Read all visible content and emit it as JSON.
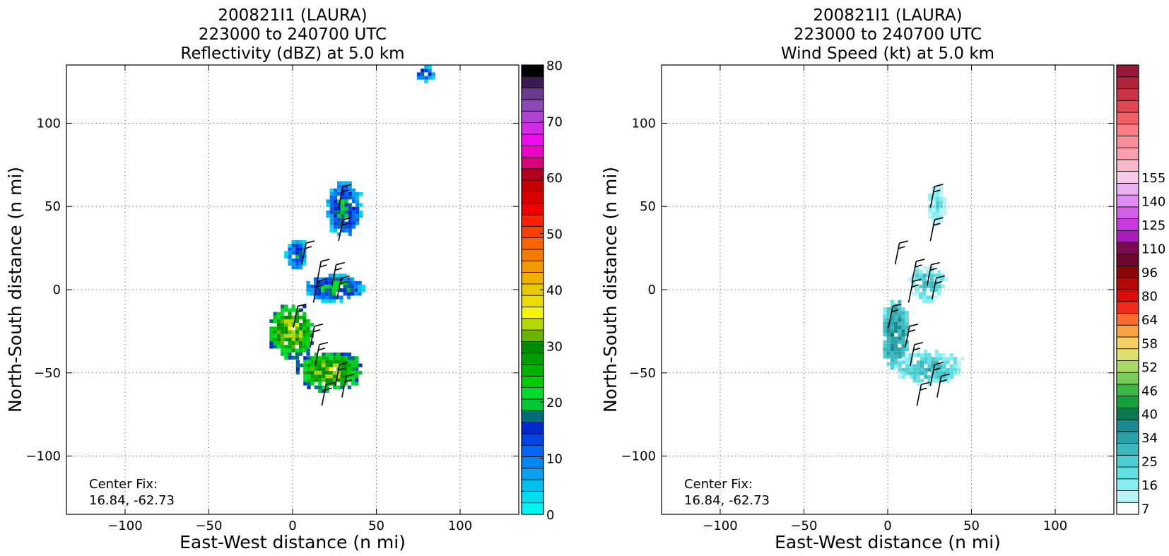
{
  "figure": {
    "panels": [
      {
        "title_lines": [
          "200821I1 (LAURA)",
          "223000 to 240700 UTC",
          "Reflectivity (dBZ) at 5.0 km"
        ],
        "center_fix_label": "Center Fix:",
        "center_fix_value": "16.84, -62.73"
      },
      {
        "title_lines": [
          "200821I1 (LAURA)",
          "223000 to 240700 UTC",
          "Wind Speed (kt) at 5.0 km"
        ],
        "center_fix_label": "Center Fix:",
        "center_fix_value": "16.84, -62.73"
      }
    ]
  },
  "chart_data": [
    {
      "type": "heatmap",
      "title": "200821I1 (LAURA) 223000 to 240700 UTC Reflectivity (dBZ) at 5.0 km",
      "xlabel": "East-West distance (n mi)",
      "ylabel": "North-South distance (n mi)",
      "xlim": [
        -135,
        135
      ],
      "ylim": [
        -135,
        135
      ],
      "x_ticks": [
        -100,
        -50,
        0,
        50,
        100
      ],
      "y_ticks": [
        -100,
        -50,
        0,
        50,
        100
      ],
      "x_tick_labels": [
        "−100",
        "−50",
        "0",
        "50",
        "100"
      ],
      "y_tick_labels": [
        "−100",
        "−50",
        "0",
        "50",
        "100"
      ],
      "grid": true,
      "colorbar": {
        "label": "dBZ",
        "min": 0,
        "max": 80,
        "tick_values": [
          0,
          10,
          20,
          30,
          40,
          50,
          60,
          70,
          80
        ],
        "tick_labels": [
          "0",
          "10",
          "20",
          "30",
          "40",
          "50",
          "60",
          "70",
          "80"
        ],
        "colors": [
          "#00f5f5",
          "#00dcf0",
          "#00c0ee",
          "#0aa2f0",
          "#0088f2",
          "#0066f4",
          "#0044e6",
          "#0028cc",
          "#006e7a",
          "#00c832",
          "#00dc2d",
          "#00cd00",
          "#00b400",
          "#009f00",
          "#008c00",
          "#6ab400",
          "#b4d800",
          "#f5f500",
          "#ecdc00",
          "#e8c800",
          "#f0b000",
          "#f29800",
          "#f47c00",
          "#f76400",
          "#fa4000",
          "#fc2000",
          "#f00000",
          "#d80000",
          "#c40000",
          "#b4001e",
          "#dc0078",
          "#f000c8",
          "#f00af0",
          "#d22ae6",
          "#b242d2",
          "#8a48b8",
          "#6a3a90",
          "#3a1a50",
          "#000000"
        ]
      },
      "center_fix": [
        16.84,
        -62.73
      ],
      "echo_regions": [
        {
          "x": [
            -16,
            12
          ],
          "y": [
            -10,
            -42
          ],
          "dbz": 25
        },
        {
          "x": [
            6,
            42
          ],
          "y": [
            8,
            -8
          ],
          "dbz": 12
        },
        {
          "x": [
            2,
            40
          ],
          "y": [
            -38,
            -62
          ],
          "dbz": 24
        },
        {
          "x": [
            20,
            40
          ],
          "y": [
            65,
            30
          ],
          "dbz": 11
        },
        {
          "x": [
            -5,
            8
          ],
          "y": [
            30,
            10
          ],
          "dbz": 8
        },
        {
          "x": [
            72,
            84
          ],
          "y": [
            133,
            124
          ],
          "dbz": 8
        }
      ],
      "wind_barbs": [
        {
          "x": 8,
          "y": 28
        },
        {
          "x": 17,
          "y": 17
        },
        {
          "x": 26,
          "y": 15
        },
        {
          "x": 30,
          "y": 62
        },
        {
          "x": 30,
          "y": 42
        },
        {
          "x": 15,
          "y": 5
        },
        {
          "x": 29,
          "y": 7
        },
        {
          "x": 3,
          "y": -10
        },
        {
          "x": 13,
          "y": -22
        },
        {
          "x": 16,
          "y": -33
        },
        {
          "x": 28,
          "y": -45
        },
        {
          "x": 32,
          "y": -52
        },
        {
          "x": 20,
          "y": -57
        }
      ]
    },
    {
      "type": "heatmap",
      "title": "200821I1 (LAURA) 223000 to 240700 UTC Wind Speed (kt) at 5.0 km",
      "xlabel": "East-West distance (n mi)",
      "ylabel": "North-South distance (n mi)",
      "xlim": [
        -135,
        135
      ],
      "ylim": [
        -135,
        135
      ],
      "x_ticks": [
        -100,
        -50,
        0,
        50,
        100
      ],
      "y_ticks": [
        -100,
        -50,
        0,
        50,
        100
      ],
      "x_tick_labels": [
        "−100",
        "−50",
        "0",
        "50",
        "100"
      ],
      "y_tick_labels": [
        "−100",
        "−50",
        "0",
        "50",
        "100"
      ],
      "grid": true,
      "colorbar": {
        "label": "kt",
        "tick_labels": [
          "7",
          "16",
          "25",
          "34",
          "40",
          "46",
          "52",
          "58",
          "64",
          "80",
          "96",
          "110",
          "125",
          "140",
          "155"
        ],
        "tick_bin_index": [
          0,
          2,
          4,
          6,
          8,
          10,
          12,
          14,
          16,
          18,
          20,
          22,
          24,
          26,
          28
        ],
        "colors": [
          "#ffffff",
          "#b8f4f6",
          "#86eef0",
          "#62dfe2",
          "#4ecdd2",
          "#3cb8be",
          "#2aa2aa",
          "#1a8a92",
          "#08784e",
          "#16a03c",
          "#3cb846",
          "#78cc5a",
          "#aad864",
          "#e0e06e",
          "#f6d066",
          "#f8a240",
          "#fa6a2e",
          "#f22a1a",
          "#dc0c0c",
          "#b40808",
          "#8a0606",
          "#70062a",
          "#7a0a4e",
          "#a81aba",
          "#c83ae0",
          "#d460e8",
          "#e08cf0",
          "#eab0f0",
          "#f4cce8",
          "#f8b8cc",
          "#f8a0b0",
          "#f88e9a",
          "#fa7c84",
          "#f26066",
          "#e04652",
          "#c83446",
          "#b0243a",
          "#9a1638"
        ]
      },
      "center_fix": [
        16.84,
        -62.73
      ],
      "wind_regions": [
        {
          "x": [
            -5,
            12
          ],
          "y": [
            -8,
            -48
          ],
          "kt": 24
        },
        {
          "x": [
            12,
            34
          ],
          "y": [
            13,
            -8
          ],
          "kt": 17
        },
        {
          "x": [
            4,
            44
          ],
          "y": [
            -38,
            -58
          ],
          "kt": 18
        },
        {
          "x": [
            22,
            34
          ],
          "y": [
            62,
            38
          ],
          "kt": 12
        }
      ],
      "wind_barbs": [
        {
          "x": 7,
          "y": 28
        },
        {
          "x": 17,
          "y": 17
        },
        {
          "x": 26,
          "y": 15
        },
        {
          "x": 28,
          "y": 62
        },
        {
          "x": 28,
          "y": 42
        },
        {
          "x": 15,
          "y": 5
        },
        {
          "x": 29,
          "y": 7
        },
        {
          "x": 3,
          "y": -10
        },
        {
          "x": 13,
          "y": -22
        },
        {
          "x": 16,
          "y": -33
        },
        {
          "x": 28,
          "y": -45
        },
        {
          "x": 32,
          "y": -52
        },
        {
          "x": 20,
          "y": -57
        }
      ]
    }
  ]
}
